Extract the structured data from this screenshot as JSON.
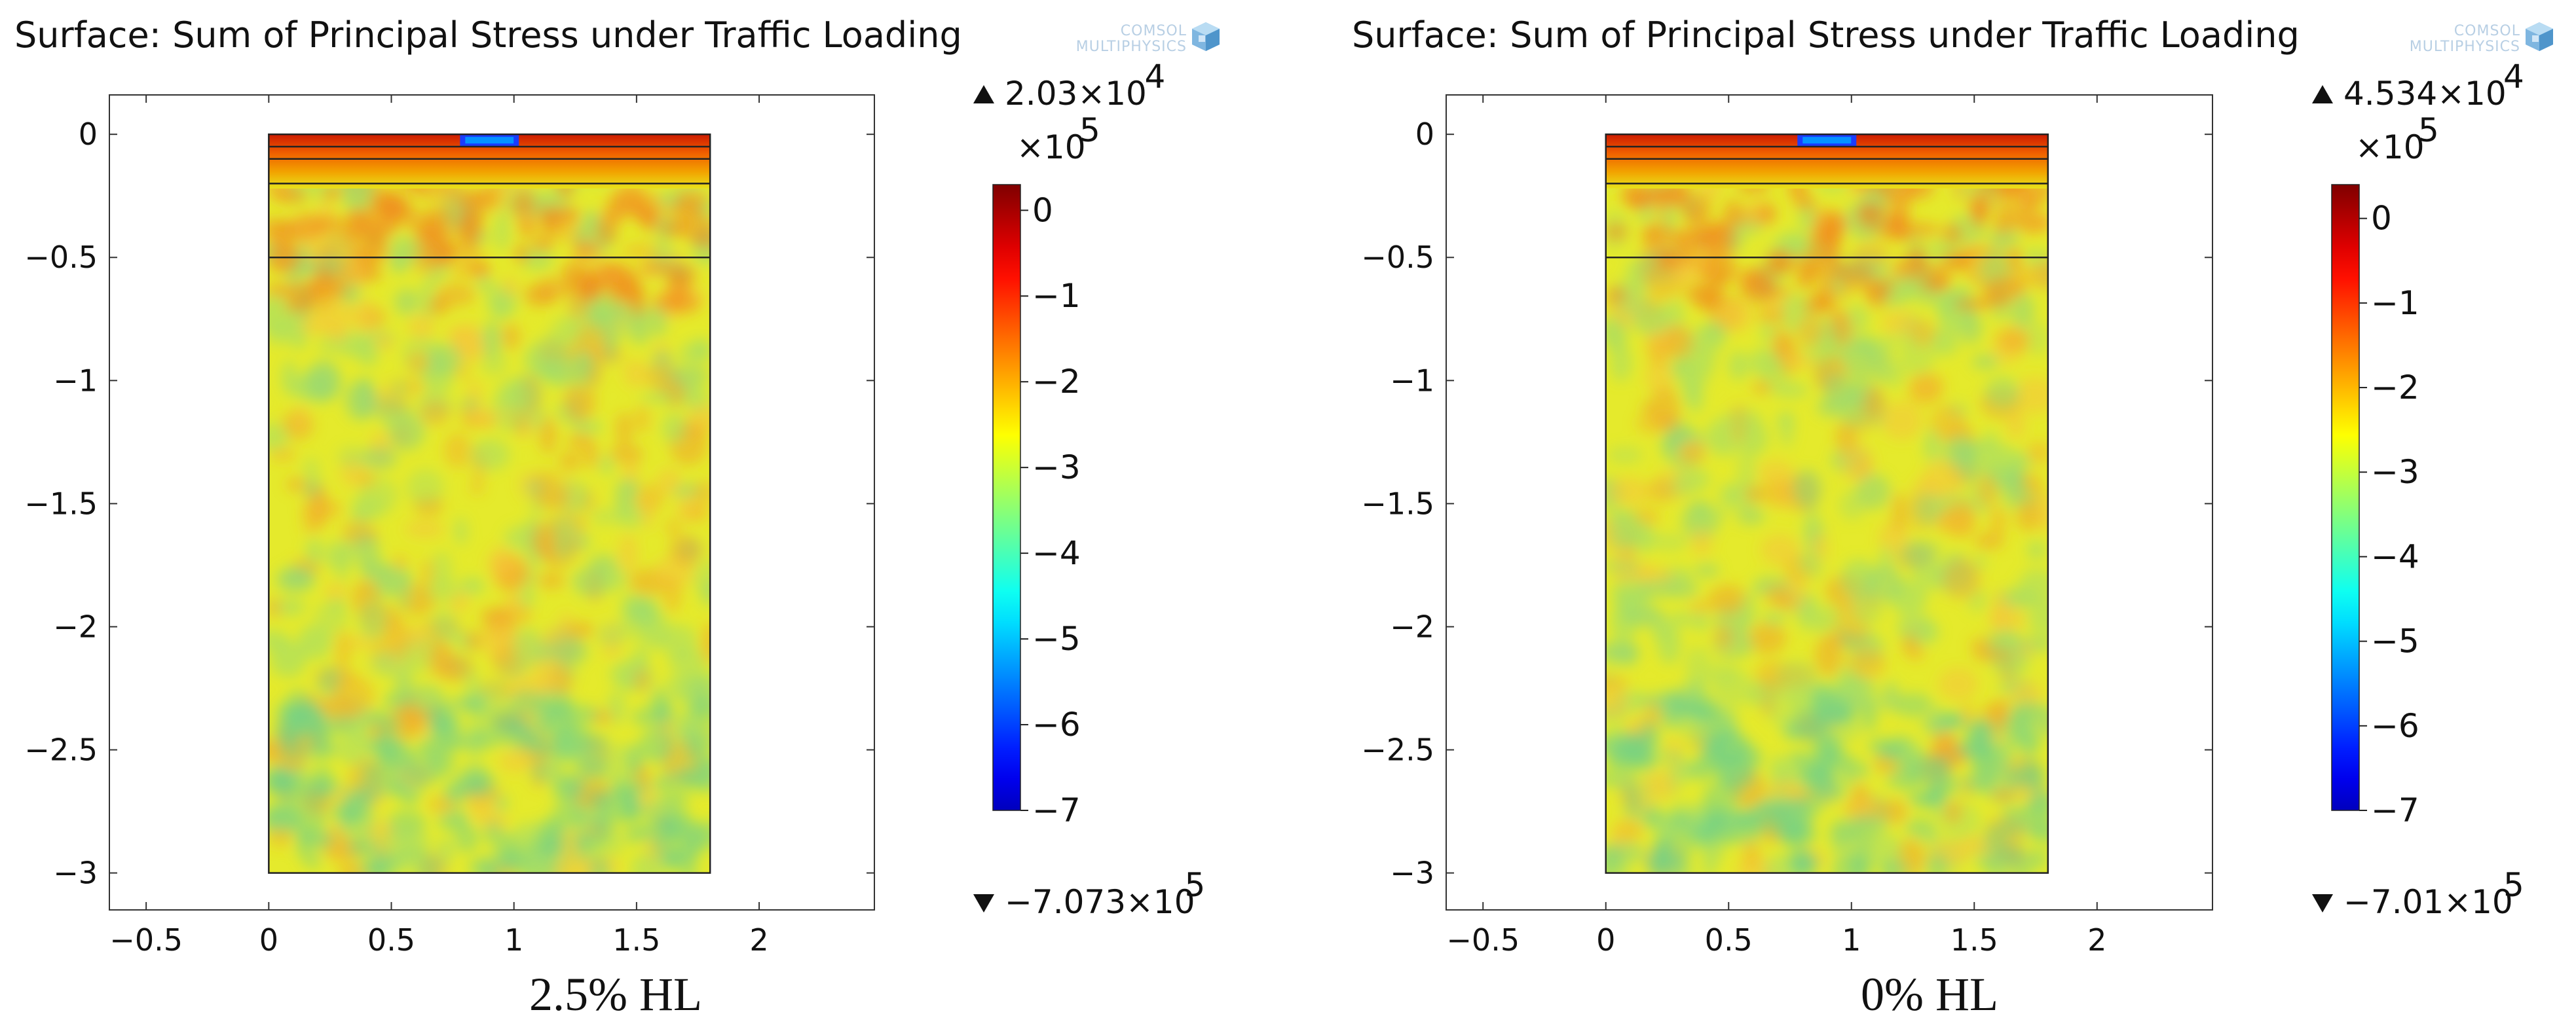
{
  "figure": {
    "colors": {
      "background": "#ffffff",
      "axis": "#333333",
      "field_base": "#e5ea2c",
      "layer_lines": "#222222"
    }
  },
  "chart_data": [
    {
      "type": "heatmap",
      "title": "Surface: Sum of Principal Stress under Traffic Loading",
      "logo_text": [
        "COMSOL",
        "MULTIPHYSICS"
      ],
      "caption": "2.5% HL",
      "xlim": [
        -0.65,
        2.47
      ],
      "ylim": [
        -3.15,
        0.16
      ],
      "xticks": [
        -0.5,
        0,
        0.5,
        1,
        1.5,
        2
      ],
      "xtick_labels": [
        "−0.5",
        "0",
        "0.5",
        "1",
        "1.5",
        "2"
      ],
      "yticks": [
        0,
        -0.5,
        -1,
        -1.5,
        -2,
        -2.5,
        -3
      ],
      "ytick_labels": [
        "0",
        "−0.5",
        "−1",
        "−1.5",
        "−2",
        "−2.5",
        "−3"
      ],
      "domain": {
        "x": [
          0,
          1.8
        ],
        "y": [
          -3,
          0
        ]
      },
      "layer_boundaries_y": [
        -0.05,
        -0.1,
        -0.2,
        -0.5
      ],
      "load_patch": {
        "x": [
          0.78,
          1.02
        ],
        "y_top": 0,
        "y_bottom": -0.05
      },
      "colorbar": {
        "unit_label": "×10",
        "unit_exp": "5",
        "range": [
          -7,
          0.3
        ],
        "ticks": [
          0,
          -1,
          -2,
          -3,
          -4,
          -5,
          -6,
          -7
        ],
        "tick_labels": [
          "0",
          "−1",
          "−2",
          "−3",
          "−4",
          "−5",
          "−6",
          "−7"
        ]
      },
      "max_label": "2.03×10",
      "max_exp": "4",
      "min_label": "−7.073×10",
      "min_exp": "5",
      "max_value": 20300,
      "min_value": -707300
    },
    {
      "type": "heatmap",
      "title": "Surface: Sum of Principal Stress under Traffic Loading",
      "logo_text": [
        "COMSOL",
        "MULTIPHYSICS"
      ],
      "caption": "0% HL",
      "xlim": [
        -0.65,
        2.47
      ],
      "ylim": [
        -3.15,
        0.16
      ],
      "xticks": [
        -0.5,
        0,
        0.5,
        1,
        1.5,
        2
      ],
      "xtick_labels": [
        "−0.5",
        "0",
        "0.5",
        "1",
        "1.5",
        "2"
      ],
      "yticks": [
        0,
        -0.5,
        -1,
        -1.5,
        -2,
        -2.5,
        -3
      ],
      "ytick_labels": [
        "0",
        "−0.5",
        "−1",
        "−1.5",
        "−2",
        "−2.5",
        "−3"
      ],
      "domain": {
        "x": [
          0,
          1.8
        ],
        "y": [
          -3,
          0
        ]
      },
      "layer_boundaries_y": [
        -0.05,
        -0.1,
        -0.2,
        -0.5
      ],
      "load_patch": {
        "x": [
          0.78,
          1.02
        ],
        "y_top": 0,
        "y_bottom": -0.05
      },
      "colorbar": {
        "unit_label": "×10",
        "unit_exp": "5",
        "range": [
          -7,
          0.4
        ],
        "ticks": [
          0,
          -1,
          -2,
          -3,
          -4,
          -5,
          -6,
          -7
        ],
        "tick_labels": [
          "0",
          "−1",
          "−2",
          "−3",
          "−4",
          "−5",
          "−6",
          "−7"
        ]
      },
      "max_label": "4.534×10",
      "max_exp": "4",
      "min_label": "−7.01×10",
      "min_exp": "5",
      "max_value": 45340,
      "min_value": -701000
    }
  ]
}
